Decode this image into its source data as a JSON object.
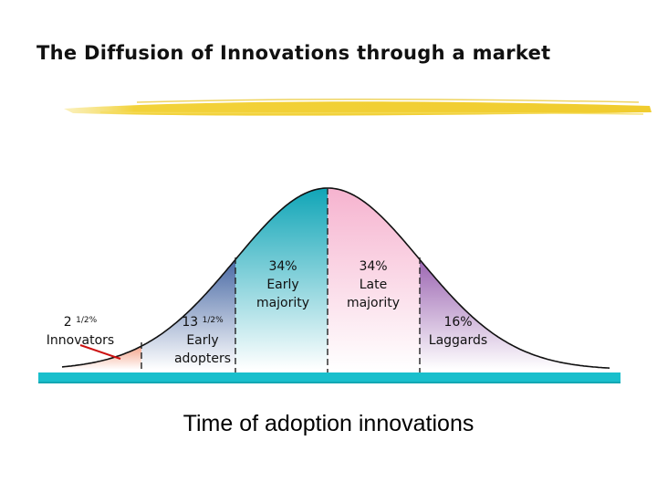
{
  "title": "The Diffusion of Innovations through a market",
  "colors": {
    "innovators": "#f4a48a",
    "early_adopters": "#4f6fa8",
    "early_majority": "#1aa7b8",
    "late_majority": "#f6b8d2",
    "laggards": "#a06ab4",
    "baseline": "#19bfcc",
    "underline": "#f2d23a"
  },
  "chart_data": {
    "type": "area",
    "xlabel": "Time of adoption innovations",
    "segments": [
      {
        "name": "Innovators",
        "pct_whole": "2",
        "pct_fraction": "1/2%",
        "share": 2.5
      },
      {
        "name": "Early adopters",
        "label_lines": [
          "Early",
          "adopters"
        ],
        "pct_whole": "13",
        "pct_fraction": "1/2%",
        "share": 13.5
      },
      {
        "name": "Early majority",
        "label_lines": [
          "Early",
          "majority"
        ],
        "pct": "34%",
        "share": 34
      },
      {
        "name": "Late majority",
        "label_lines": [
          "Late",
          "majority"
        ],
        "pct": "34%",
        "share": 34
      },
      {
        "name": "Laggards",
        "pct": "16%",
        "share": 16
      }
    ]
  }
}
